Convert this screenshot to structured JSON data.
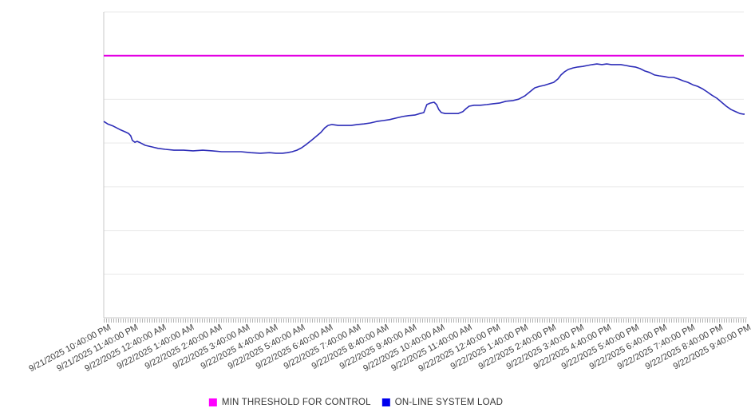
{
  "chart_data": {
    "type": "line",
    "title": "",
    "x_axis": {
      "labels": [
        "9/21/2025 10:40:00 PM",
        "9/21/2025 11:40:00 PM",
        "9/22/2025 12:40:00 AM",
        "9/22/2025 1:40:00 AM",
        "9/22/2025 2:40:00 AM",
        "9/22/2025 3:40:00 AM",
        "9/22/2025 4:40:00 AM",
        "9/22/2025 5:40:00 AM",
        "9/22/2025 6:40:00 AM",
        "9/22/2025 7:40:00 AM",
        "9/22/2025 8:40:00 AM",
        "9/22/2025 9:40:00 AM",
        "9/22/2025 10:40:00 AM",
        "9/22/2025 11:40:00 AM",
        "9/22/2025 12:40:00 PM",
        "9/22/2025 1:40:00 PM",
        "9/22/2025 2:40:00 PM",
        "9/22/2025 3:40:00 PM",
        "9/22/2025 4:40:00 PM",
        "9/22/2025 5:40:00 PM",
        "9/22/2025 6:40:00 PM",
        "9/22/2025 7:40:00 PM",
        "9/22/2025 8:40:00 PM",
        "9/22/2025 9:40:00 PM"
      ],
      "label_rotation_deg": -28,
      "minor_tick_spacing_px": 3
    },
    "y_axis": {
      "tick_labels_visible": false,
      "ylim": [
        0,
        100
      ],
      "gridline_count": 8,
      "grid": true
    },
    "legend_position": "bottom-center",
    "legend": [
      {
        "label": "MIN THRESHOLD FOR CONTROL",
        "color": "#ff00ff"
      },
      {
        "label": "ON-LINE SYSTEM LOAD",
        "color": "#0000ee"
      }
    ],
    "series": [
      {
        "name": "MIN THRESHOLD FOR CONTROL",
        "type": "threshold-line",
        "color": "#e400e4",
        "value": 85.7
      },
      {
        "name": "ON-LINE SYSTEM LOAD",
        "type": "line",
        "color": "#2d2db8",
        "x_unit": "hours since 9/21/2025 10:40:00 PM",
        "y_unit": "relative load (0-100 of plot scale, axis unlabeled)",
        "points": [
          [
            0,
            64.2
          ],
          [
            0.14,
            63.4
          ],
          [
            0.34,
            62.7
          ],
          [
            0.57,
            61.6
          ],
          [
            0.77,
            60.8
          ],
          [
            0.89,
            60.3
          ],
          [
            0.97,
            59.5
          ],
          [
            1.03,
            58.0
          ],
          [
            1.12,
            57.4
          ],
          [
            1.2,
            57.7
          ],
          [
            1.32,
            57.2
          ],
          [
            1.49,
            56.4
          ],
          [
            1.72,
            55.9
          ],
          [
            1.95,
            55.4
          ],
          [
            2.21,
            55.1
          ],
          [
            2.52,
            54.8
          ],
          [
            2.87,
            54.8
          ],
          [
            3.21,
            54.6
          ],
          [
            3.56,
            54.8
          ],
          [
            3.9,
            54.6
          ],
          [
            4.24,
            54.3
          ],
          [
            4.59,
            54.3
          ],
          [
            4.93,
            54.3
          ],
          [
            5.28,
            54.0
          ],
          [
            5.62,
            53.8
          ],
          [
            5.96,
            54.0
          ],
          [
            6.19,
            53.8
          ],
          [
            6.42,
            53.8
          ],
          [
            6.6,
            54.0
          ],
          [
            6.77,
            54.3
          ],
          [
            6.94,
            54.8
          ],
          [
            7.11,
            55.6
          ],
          [
            7.28,
            56.7
          ],
          [
            7.46,
            58.0
          ],
          [
            7.63,
            59.3
          ],
          [
            7.8,
            60.6
          ],
          [
            7.94,
            62.1
          ],
          [
            8.06,
            62.9
          ],
          [
            8.2,
            63.2
          ],
          [
            8.43,
            62.9
          ],
          [
            8.66,
            62.9
          ],
          [
            8.89,
            62.9
          ],
          [
            9.12,
            63.2
          ],
          [
            9.35,
            63.4
          ],
          [
            9.58,
            63.7
          ],
          [
            9.81,
            64.2
          ],
          [
            10.04,
            64.5
          ],
          [
            10.27,
            64.8
          ],
          [
            10.5,
            65.3
          ],
          [
            10.73,
            65.8
          ],
          [
            10.95,
            66.1
          ],
          [
            11.18,
            66.3
          ],
          [
            11.36,
            66.8
          ],
          [
            11.5,
            67.1
          ],
          [
            11.61,
            69.7
          ],
          [
            11.73,
            70.2
          ],
          [
            11.87,
            70.5
          ],
          [
            11.96,
            69.7
          ],
          [
            12.04,
            68.1
          ],
          [
            12.13,
            67.1
          ],
          [
            12.27,
            66.8
          ],
          [
            12.5,
            66.8
          ],
          [
            12.73,
            66.8
          ],
          [
            12.9,
            67.4
          ],
          [
            13.02,
            68.4
          ],
          [
            13.13,
            69.2
          ],
          [
            13.31,
            69.5
          ],
          [
            13.53,
            69.5
          ],
          [
            13.76,
            69.7
          ],
          [
            13.99,
            70.0
          ],
          [
            14.22,
            70.2
          ],
          [
            14.45,
            70.8
          ],
          [
            14.68,
            71.0
          ],
          [
            14.91,
            71.5
          ],
          [
            15.14,
            72.6
          ],
          [
            15.31,
            73.9
          ],
          [
            15.49,
            75.2
          ],
          [
            15.66,
            75.7
          ],
          [
            15.83,
            76.0
          ],
          [
            16.0,
            76.5
          ],
          [
            16.17,
            77.0
          ],
          [
            16.32,
            78.1
          ],
          [
            16.43,
            79.4
          ],
          [
            16.55,
            80.4
          ],
          [
            16.69,
            81.2
          ],
          [
            16.86,
            81.7
          ],
          [
            17.03,
            82.0
          ],
          [
            17.21,
            82.2
          ],
          [
            17.38,
            82.5
          ],
          [
            17.55,
            82.8
          ],
          [
            17.72,
            83.0
          ],
          [
            17.9,
            82.8
          ],
          [
            18.07,
            83.0
          ],
          [
            18.24,
            82.8
          ],
          [
            18.41,
            82.8
          ],
          [
            18.58,
            82.8
          ],
          [
            18.76,
            82.5
          ],
          [
            18.93,
            82.2
          ],
          [
            19.1,
            82.0
          ],
          [
            19.27,
            81.5
          ],
          [
            19.44,
            80.7
          ],
          [
            19.62,
            80.2
          ],
          [
            19.79,
            79.4
          ],
          [
            19.96,
            79.1
          ],
          [
            20.13,
            78.9
          ],
          [
            20.31,
            78.6
          ],
          [
            20.48,
            78.6
          ],
          [
            20.65,
            78.1
          ],
          [
            20.82,
            77.5
          ],
          [
            20.99,
            77.0
          ],
          [
            21.17,
            76.2
          ],
          [
            21.34,
            75.7
          ],
          [
            21.51,
            74.9
          ],
          [
            21.68,
            73.9
          ],
          [
            21.85,
            72.8
          ],
          [
            22.03,
            71.8
          ],
          [
            22.2,
            70.5
          ],
          [
            22.37,
            69.2
          ],
          [
            22.54,
            68.1
          ],
          [
            22.71,
            67.4
          ],
          [
            22.86,
            66.8
          ],
          [
            22.97,
            66.6
          ],
          [
            23.03,
            66.6
          ]
        ]
      }
    ],
    "style": {
      "gridline_color": "#e9e9e9",
      "axis_line_color": "#c9c9c9",
      "tick_color": "#b3b3b3",
      "label_color": "#3f3f3f"
    }
  }
}
